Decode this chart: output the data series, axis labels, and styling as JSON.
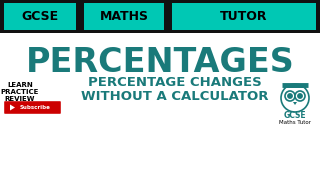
{
  "bg_color": "#ffffff",
  "teal_color": "#1a7a7a",
  "teal_header": "#00c8b4",
  "black_color": "#000000",
  "dark_color": "#111111",
  "red_color": "#cc0000",
  "header_words": [
    "GCSE",
    "MATHS",
    "TUTOR"
  ],
  "main_title": "PERCENTAGES",
  "subtitle_line1": "PERCENTAGE CHANGES",
  "subtitle_line2": "WITHOUT A CALCULATOR",
  "left_line1": "LEARN",
  "left_line2": "PRACTICE",
  "left_line3": "REVIEW",
  "subscribe_text": "Subscribe",
  "gcse_logo_text": "GCSE",
  "maths_tutor_text": "Maths Tutor"
}
